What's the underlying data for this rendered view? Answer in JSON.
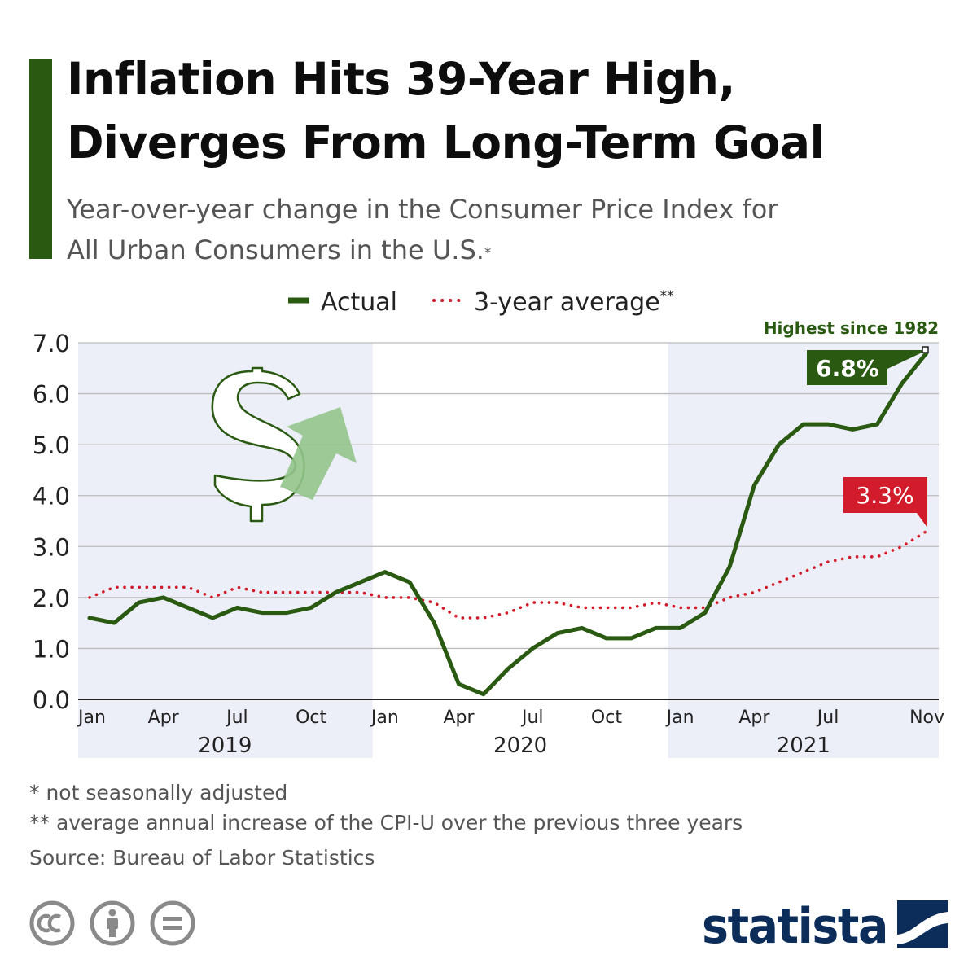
{
  "title": "Inflation Hits 39-Year High, Diverges From Long-Term Goal",
  "title_lines": [
    "Inflation Hits 39-Year High,",
    "Diverges From Long-Term Goal"
  ],
  "subtitle": "Year-over-year change in the Consumer Price Index for All Urban Consumers in the U.S.",
  "subtitle_lines": [
    "Year-over-year change in the Consumer Price Index for",
    "All Urban Consumers in the U.S."
  ],
  "subtitle_marker": "*",
  "footnotes": {
    "note1": "*   not seasonally adjusted",
    "note2": "** average annual increase of the CPI-U over the previous three years",
    "source": "Source: Bureau of Labor Statistics"
  },
  "logo": {
    "text": "statista"
  },
  "icons": [
    "cc-icon",
    "by-icon",
    "nd-icon",
    "dollar-icon",
    "arrow-up-icon"
  ],
  "colors": {
    "accent": "#2a5a12",
    "actual_line": "#2a5a12",
    "average_line": "#d21c2b",
    "shaded_band": "#eceff7",
    "arrow": "#93c48b",
    "logo": "#0c2c5a"
  },
  "chart_data": {
    "type": "line",
    "x": [
      "Jan 2019",
      "Feb 2019",
      "Mar 2019",
      "Apr 2019",
      "May 2019",
      "Jun 2019",
      "Jul 2019",
      "Aug 2019",
      "Sep 2019",
      "Oct 2019",
      "Nov 2019",
      "Dec 2019",
      "Jan 2020",
      "Feb 2020",
      "Mar 2020",
      "Apr 2020",
      "May 2020",
      "Jun 2020",
      "Jul 2020",
      "Aug 2020",
      "Sep 2020",
      "Oct 2020",
      "Nov 2020",
      "Dec 2020",
      "Jan 2021",
      "Feb 2021",
      "Mar 2021",
      "Apr 2021",
      "May 2021",
      "Jun 2021",
      "Jul 2021",
      "Aug 2021",
      "Sep 2021",
      "Oct 2021",
      "Nov 2021"
    ],
    "series": [
      {
        "name": "Actual",
        "style": "solid",
        "values": [
          1.6,
          1.5,
          1.9,
          2.0,
          1.8,
          1.6,
          1.8,
          1.7,
          1.7,
          1.8,
          2.1,
          2.3,
          2.5,
          2.3,
          1.5,
          0.3,
          0.1,
          0.6,
          1.0,
          1.3,
          1.4,
          1.2,
          1.2,
          1.4,
          1.4,
          1.7,
          2.6,
          4.2,
          5.0,
          5.4,
          5.4,
          5.3,
          5.4,
          6.2,
          6.8
        ]
      },
      {
        "name": "3-year average**",
        "style": "dotted",
        "values": [
          2.0,
          2.2,
          2.2,
          2.2,
          2.2,
          2.0,
          2.2,
          2.1,
          2.1,
          2.1,
          2.1,
          2.1,
          2.0,
          2.0,
          1.9,
          1.6,
          1.6,
          1.7,
          1.9,
          1.9,
          1.8,
          1.8,
          1.8,
          1.9,
          1.8,
          1.8,
          2.0,
          2.1,
          2.3,
          2.5,
          2.7,
          2.8,
          2.8,
          3.0,
          3.3
        ]
      }
    ],
    "y_ticks": [
      "7.0",
      "6.0",
      "5.0",
      "4.0",
      "3.0",
      "2.0",
      "1.0",
      "0.0"
    ],
    "ylim": [
      0,
      7
    ],
    "x_ticks": [
      {
        "label": "Jan",
        "index": 0
      },
      {
        "label": "Apr",
        "index": 3
      },
      {
        "label": "Jul",
        "index": 6
      },
      {
        "label": "Oct",
        "index": 9
      },
      {
        "label": "Jan",
        "index": 12
      },
      {
        "label": "Apr",
        "index": 15
      },
      {
        "label": "Jul",
        "index": 18
      },
      {
        "label": "Oct",
        "index": 21
      },
      {
        "label": "Jan",
        "index": 24
      },
      {
        "label": "Apr",
        "index": 27
      },
      {
        "label": "Jul",
        "index": 30
      },
      {
        "label": "Nov",
        "index": 34
      }
    ],
    "years": [
      {
        "label": "2019",
        "start": 0,
        "end": 11,
        "shaded": true
      },
      {
        "label": "2020",
        "start": 12,
        "end": 23,
        "shaded": false
      },
      {
        "label": "2021",
        "start": 24,
        "end": 34,
        "shaded": true
      }
    ],
    "legend": {
      "position": "top",
      "actual": "Actual",
      "average": "3-year average",
      "average_marker": "**"
    },
    "annotations": {
      "actual_label": "6.8%",
      "average_label": "3.3%",
      "peak_note": "Highest since 1982"
    },
    "grid": true
  }
}
